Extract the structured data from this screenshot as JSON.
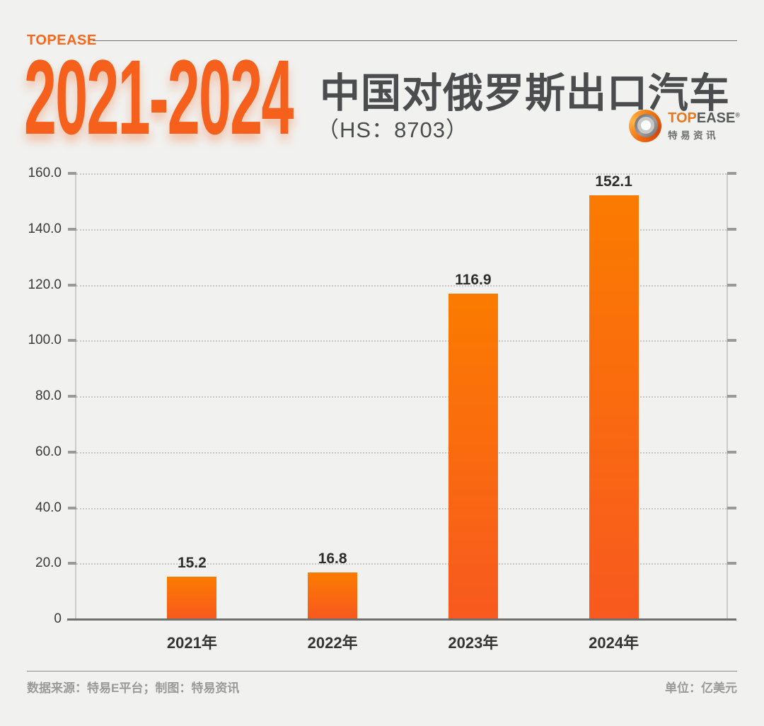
{
  "brand": {
    "wordmark": "TOPEASE",
    "logo_top": "TOP",
    "logo_ease": "EASE",
    "logo_reg": "®",
    "logo_cn": "特易资讯"
  },
  "header": {
    "years_range": "2021-2024",
    "title": "中国对俄罗斯出口汽车",
    "subtitle": "（HS：8703）"
  },
  "chart_data": {
    "type": "bar",
    "categories": [
      "2021年",
      "2022年",
      "2023年",
      "2024年"
    ],
    "values": [
      15.2,
      16.8,
      116.9,
      152.1
    ],
    "value_labels": [
      "15.2",
      "16.8",
      "116.9",
      "152.1"
    ],
    "y_ticks": [
      "0",
      "20.0",
      "40.0",
      "60.0",
      "80.0",
      "100.0",
      "120.0",
      "140.0",
      "160.0"
    ],
    "ylim": [
      0,
      160
    ],
    "grid": "horizontal-dotted",
    "legend": "none",
    "bar_color_top": "#fb7b00",
    "bar_color_bottom": "#f8591f"
  },
  "footer": {
    "source": "数据来源：特易E平台；制图：特易资讯",
    "unit": "单位：亿美元"
  },
  "colors": {
    "background": "#f1f1ef",
    "accent_orange": "#f6601d",
    "title_gray": "#4b4c4e",
    "footer_gray": "#9a9a9a"
  }
}
